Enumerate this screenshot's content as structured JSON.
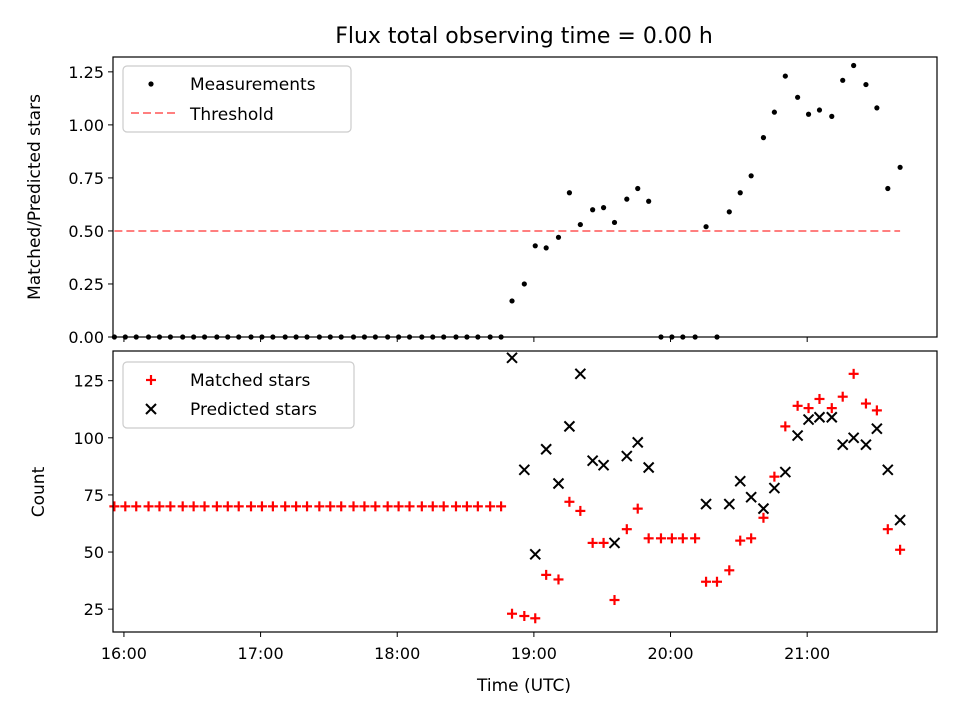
{
  "title": "Flux total observing time = 0.00 h",
  "chart_data": [
    {
      "type": "scatter",
      "ylabel": "Matched/Predicted stars",
      "xlim": [
        15.92,
        21.95
      ],
      "ylim": [
        0,
        1.32
      ],
      "yticks": [
        0.0,
        0.25,
        0.5,
        0.75,
        1.0,
        1.25
      ],
      "ytick_labels": [
        "0.00",
        "0.25",
        "0.50",
        "0.75",
        "1.00",
        "1.25"
      ],
      "legend_position": "top-left",
      "series": [
        {
          "name": "Measurements",
          "marker": "dot",
          "color": "#000000",
          "x": [
            15.93,
            16.01,
            16.09,
            16.18,
            16.26,
            16.34,
            16.43,
            16.51,
            16.59,
            16.68,
            16.76,
            16.84,
            16.93,
            17.01,
            17.09,
            17.18,
            17.26,
            17.34,
            17.43,
            17.51,
            17.59,
            17.68,
            17.76,
            17.84,
            17.93,
            18.01,
            18.09,
            18.18,
            18.26,
            18.34,
            18.43,
            18.51,
            18.59,
            18.68,
            18.76,
            18.84,
            18.93,
            19.01,
            19.09,
            19.18,
            19.26,
            19.34,
            19.43,
            19.51,
            19.59,
            19.68,
            19.76,
            19.84,
            19.93,
            20.01,
            20.09,
            20.18,
            20.26,
            20.34,
            20.43,
            20.51,
            20.59,
            20.68,
            20.76,
            20.84,
            20.93,
            21.01,
            21.09,
            21.18,
            21.26,
            21.34,
            21.43,
            21.51,
            21.59,
            21.68
          ],
          "y": [
            0,
            0,
            0,
            0,
            0,
            0,
            0,
            0,
            0,
            0,
            0,
            0,
            0,
            0,
            0,
            0,
            0,
            0,
            0,
            0,
            0,
            0,
            0,
            0,
            0,
            0,
            0,
            0,
            0,
            0,
            0,
            0,
            0,
            0,
            0,
            0.17,
            0.25,
            0.43,
            0.42,
            0.47,
            0.68,
            0.53,
            0.6,
            0.61,
            0.54,
            0.65,
            0.7,
            0.64,
            0,
            0,
            0,
            0,
            0.52,
            0,
            0.59,
            0.68,
            0.76,
            0.94,
            1.06,
            1.23,
            1.13,
            1.05,
            1.07,
            1.04,
            1.21,
            1.28,
            1.19,
            1.08,
            0.7,
            0.8
          ]
        },
        {
          "name": "Threshold",
          "type": "line",
          "style": "dashed",
          "color": "#ff7f7f",
          "x": [
            15.93,
            21.68
          ],
          "y": [
            0.5,
            0.5
          ]
        }
      ]
    },
    {
      "type": "scatter",
      "xlabel": "Time (UTC)",
      "ylabel": "Count",
      "xlim": [
        15.92,
        21.95
      ],
      "ylim": [
        15,
        138
      ],
      "yticks": [
        25,
        50,
        75,
        100,
        125
      ],
      "ytick_labels": [
        "25",
        "50",
        "75",
        "100",
        "125"
      ],
      "xticks": [
        16,
        17,
        18,
        19,
        20,
        21
      ],
      "xtick_labels": [
        "16:00",
        "17:00",
        "18:00",
        "19:00",
        "20:00",
        "21:00"
      ],
      "legend_position": "top-left",
      "series": [
        {
          "name": "Matched stars",
          "marker": "plus",
          "color": "#ff0000",
          "x": [
            15.93,
            16.01,
            16.09,
            16.18,
            16.26,
            16.34,
            16.43,
            16.51,
            16.59,
            16.68,
            16.76,
            16.84,
            16.93,
            17.01,
            17.09,
            17.18,
            17.26,
            17.34,
            17.43,
            17.51,
            17.59,
            17.68,
            17.76,
            17.84,
            17.93,
            18.01,
            18.09,
            18.18,
            18.26,
            18.34,
            18.43,
            18.51,
            18.59,
            18.68,
            18.76,
            18.84,
            18.93,
            19.01,
            19.09,
            19.18,
            19.26,
            19.34,
            19.43,
            19.51,
            19.59,
            19.68,
            19.76,
            19.84,
            19.93,
            20.01,
            20.09,
            20.18,
            20.26,
            20.34,
            20.43,
            20.51,
            20.59,
            20.68,
            20.76,
            20.84,
            20.93,
            21.01,
            21.09,
            21.18,
            21.26,
            21.34,
            21.43,
            21.51,
            21.59,
            21.68
          ],
          "y": [
            70,
            70,
            70,
            70,
            70,
            70,
            70,
            70,
            70,
            70,
            70,
            70,
            70,
            70,
            70,
            70,
            70,
            70,
            70,
            70,
            70,
            70,
            70,
            70,
            70,
            70,
            70,
            70,
            70,
            70,
            70,
            70,
            70,
            70,
            70,
            23,
            22,
            21,
            40,
            38,
            72,
            68,
            54,
            54,
            29,
            60,
            69,
            56,
            56,
            56,
            56,
            56,
            37,
            37,
            42,
            55,
            56,
            65,
            83,
            105,
            114,
            113,
            117,
            113,
            118,
            128,
            115,
            112,
            60,
            51
          ]
        },
        {
          "name": "Predicted stars",
          "marker": "x",
          "color": "#000000",
          "x": [
            18.84,
            18.93,
            19.01,
            19.09,
            19.18,
            19.26,
            19.34,
            19.43,
            19.51,
            19.59,
            19.68,
            19.76,
            19.84,
            20.26,
            20.43,
            20.51,
            20.59,
            20.68,
            20.76,
            20.84,
            20.93,
            21.01,
            21.09,
            21.18,
            21.26,
            21.34,
            21.43,
            21.51,
            21.59,
            21.68
          ],
          "y": [
            135,
            86,
            49,
            95,
            80,
            105,
            128,
            90,
            88,
            54,
            92,
            98,
            87,
            71,
            71,
            81,
            74,
            69,
            78,
            85,
            101,
            108,
            109,
            109,
            97,
            100,
            97,
            104,
            86,
            64
          ]
        }
      ]
    }
  ]
}
